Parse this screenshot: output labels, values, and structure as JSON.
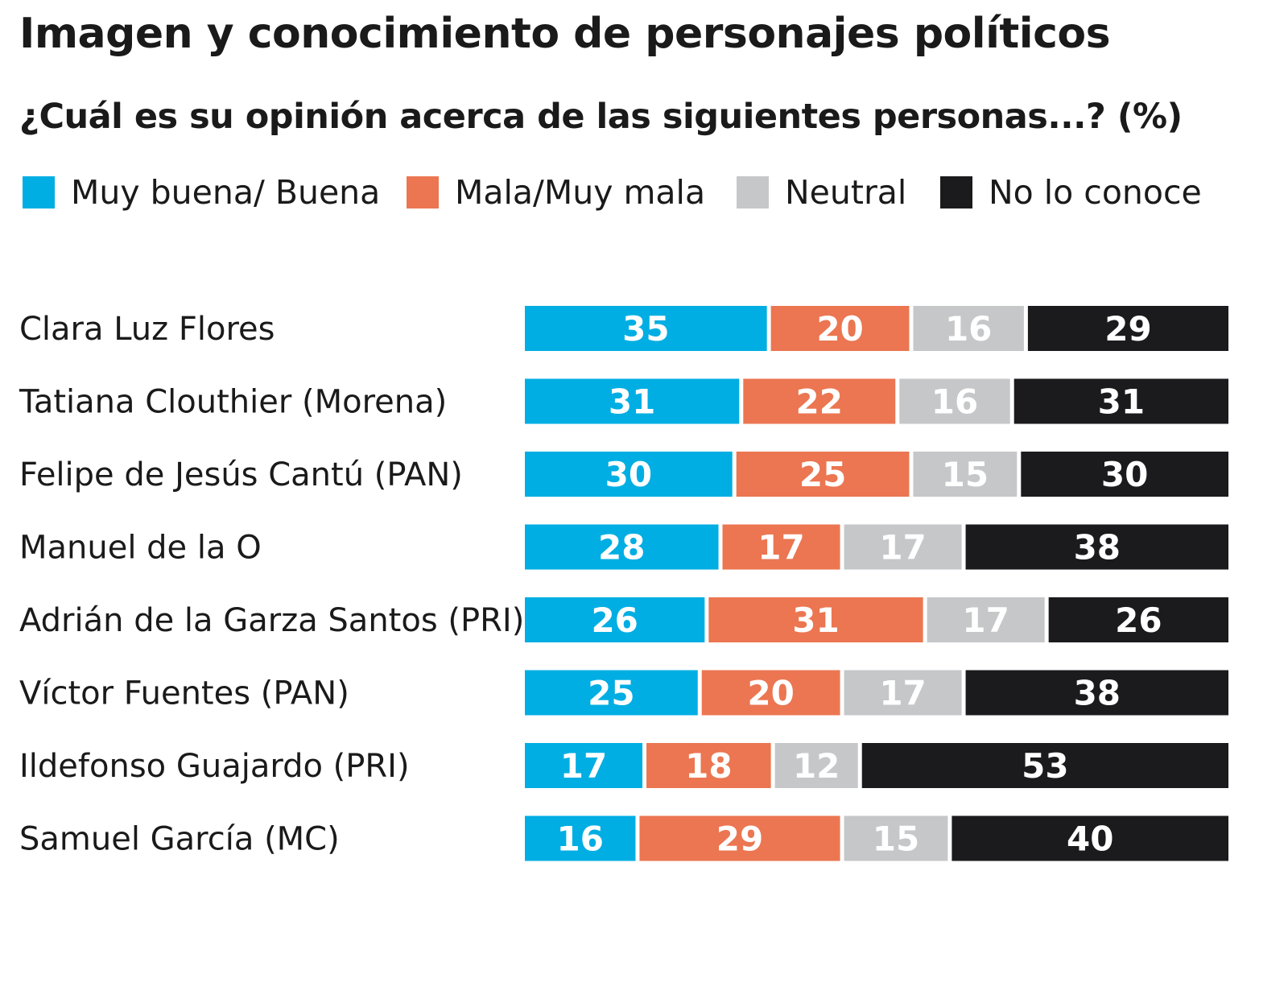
{
  "chart_data": {
    "type": "bar",
    "orientation": "horizontal",
    "stacked": true,
    "title": "Imagen y conocimiento de personajes políticos",
    "subtitle": "¿Cuál es su opinión acerca de las siguientes personas...? (%)",
    "xlabel": "",
    "ylabel": "",
    "xlim": [
      0,
      100
    ],
    "grid": false,
    "legend_position": "top-left",
    "categories": [
      "Clara Luz Flores",
      "Tatiana Clouthier (Morena)",
      "Felipe de Jesús Cantú (PAN)",
      "Manuel de la O",
      "Adrián de la Garza Santos (PRI)",
      "Víctor Fuentes (PAN)",
      "Ildefonso Guajardo (PRI)",
      "Samuel García (MC)"
    ],
    "series": [
      {
        "name": "Muy buena/ Buena",
        "color": "#00AEE3",
        "label_color": "#ffffff",
        "values": [
          35,
          31,
          30,
          28,
          26,
          25,
          17,
          16
        ]
      },
      {
        "name": "Mala/Muy mala",
        "color": "#EB7651",
        "label_color": "#ffffff",
        "values": [
          20,
          22,
          25,
          17,
          31,
          20,
          18,
          29
        ]
      },
      {
        "name": "Neutral",
        "color": "#C6C7C9",
        "label_color": "#ffffff",
        "values": [
          16,
          16,
          15,
          17,
          17,
          17,
          12,
          15
        ]
      },
      {
        "name": "No lo conoce",
        "color": "#1B1A1C",
        "label_color": "#ffffff",
        "values": [
          29,
          31,
          30,
          38,
          26,
          38,
          53,
          40
        ]
      }
    ]
  }
}
